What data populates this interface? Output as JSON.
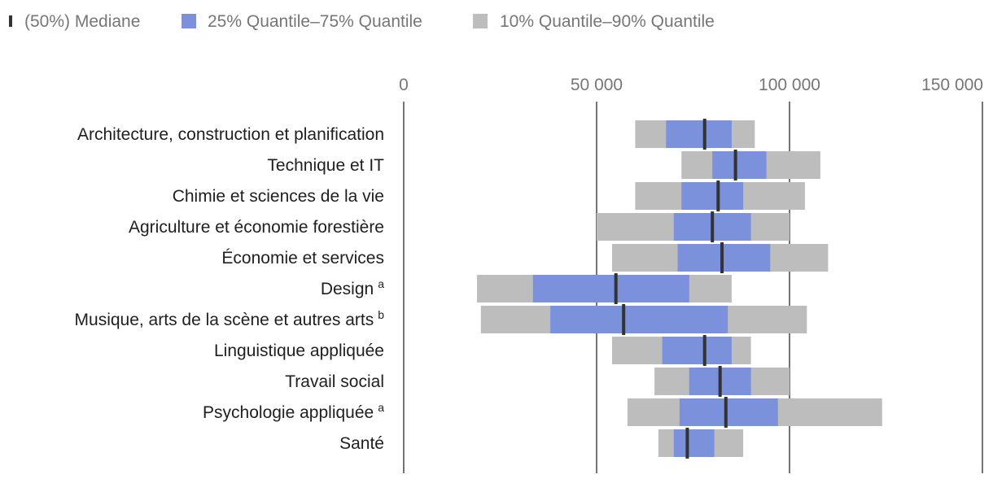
{
  "chart_data": {
    "type": "box-range-bar",
    "orientation": "horizontal",
    "legend": [
      {
        "key": "median",
        "label": "(50%) Mediane",
        "color": "#333333"
      },
      {
        "key": "iqr",
        "label": "25% Quantile–75% Quantile",
        "color": "#7b91db"
      },
      {
        "key": "range",
        "label": "10% Quantile–90% Quantile",
        "color": "#bdbdbd"
      }
    ],
    "legend_position": "top-left",
    "x_axis": {
      "range": [
        0,
        150000
      ],
      "ticks": [
        0,
        50000,
        100000,
        150000
      ],
      "tick_labels": [
        "0",
        "50 000",
        "100 000",
        "150 000"
      ],
      "position": "top",
      "gridlines": true
    },
    "categories": [
      {
        "label": "Architecture, construction et planification",
        "note": "",
        "p10": 60000,
        "p25": 68000,
        "median": 78000,
        "p75": 85000,
        "p90": 91000
      },
      {
        "label": "Technique et IT",
        "note": "",
        "p10": 72000,
        "p25": 80000,
        "median": 86000,
        "p75": 94000,
        "p90": 108000
      },
      {
        "label": "Chimie et sciences de la vie",
        "note": "",
        "p10": 60000,
        "p25": 72000,
        "median": 81500,
        "p75": 88000,
        "p90": 104000
      },
      {
        "label": "Agriculture et économie forestière",
        "note": "",
        "p10": 50000,
        "p25": 70000,
        "median": 80000,
        "p75": 90000,
        "p90": 100000
      },
      {
        "label": "Économie et services",
        "note": "",
        "p10": 54000,
        "p25": 71000,
        "median": 82500,
        "p75": 95000,
        "p90": 110000
      },
      {
        "label": "Design",
        "note": "a",
        "p10": 19000,
        "p25": 33500,
        "median": 55000,
        "p75": 74000,
        "p90": 85000
      },
      {
        "label": "Musique, arts de la scène et autres arts",
        "note": "b",
        "p10": 20000,
        "p25": 38000,
        "median": 57000,
        "p75": 84000,
        "p90": 104500
      },
      {
        "label": "Linguistique appliquée",
        "note": "",
        "p10": 54000,
        "p25": 67000,
        "median": 78000,
        "p75": 85000,
        "p90": 90000
      },
      {
        "label": "Travail social",
        "note": "",
        "p10": 65000,
        "p25": 74000,
        "median": 82000,
        "p75": 90000,
        "p90": 100000
      },
      {
        "label": "Psychologie appliquée",
        "note": "a",
        "p10": 58000,
        "p25": 71500,
        "median": 83500,
        "p75": 97000,
        "p90": 124000
      },
      {
        "label": "Santé",
        "note": "",
        "p10": 66000,
        "p25": 70000,
        "median": 73500,
        "p75": 80500,
        "p90": 88000
      }
    ]
  }
}
